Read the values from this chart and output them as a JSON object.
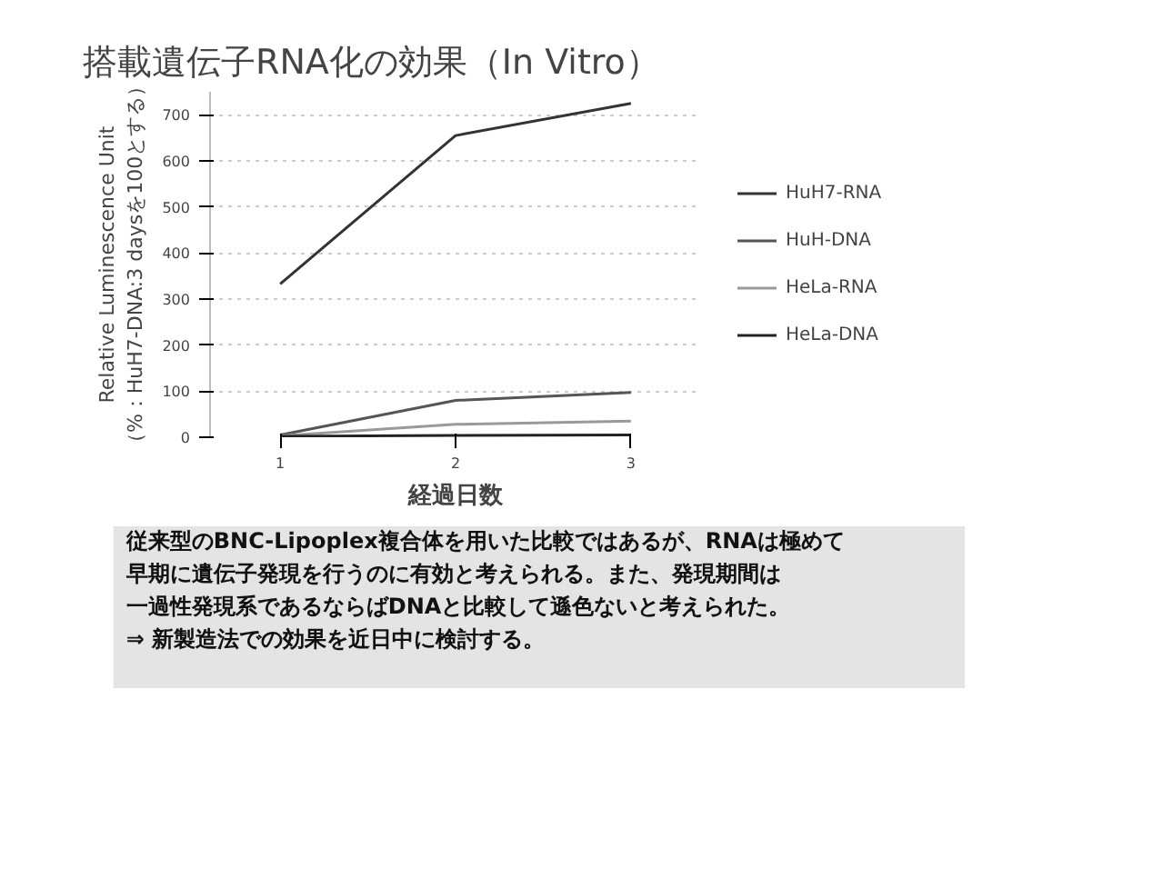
{
  "chart_data": {
    "type": "line",
    "title": "搭載遺伝子RNA化の効果（In Vitro）",
    "xlabel": "経過日数",
    "ylabel": "Relative Luminescence Unit\n（%：HuH7-DNA:3 daysを100とする）",
    "x": [
      1,
      2,
      3
    ],
    "xlim": [
      0.6,
      3.4
    ],
    "xticks": [
      1,
      2,
      3
    ],
    "ylim": [
      0,
      750
    ],
    "yticks": [
      0,
      100,
      200,
      300,
      400,
      500,
      600,
      700
    ],
    "grid": "y",
    "legend": "right",
    "marker": "none",
    "line_style": "solid",
    "series": [
      {
        "name": "HuH7-RNA",
        "color": "#333333",
        "values": [
          333,
          655,
          725
        ]
      },
      {
        "name": "HuH-DNA",
        "color": "#555555",
        "values": [
          5,
          80,
          97
        ]
      },
      {
        "name": "HeLa-RNA",
        "color": "#999999",
        "values": [
          3,
          28,
          35
        ]
      },
      {
        "name": "HeLa-DNA",
        "color": "#222222",
        "values": [
          2,
          4,
          5
        ]
      }
    ],
    "annotations": [
      "従来型のBNC-Lipoplex複合体を用いた比較ではあるが、RNAは極めて",
      "早期に遺伝子発現を行うのに有効と考えられる。また、発現期間は",
      "一過性発現系であるならばDNAと比較して遜色ないと考えられた。",
      "⇒  新製造法での効果を近日中に検討する。"
    ]
  }
}
